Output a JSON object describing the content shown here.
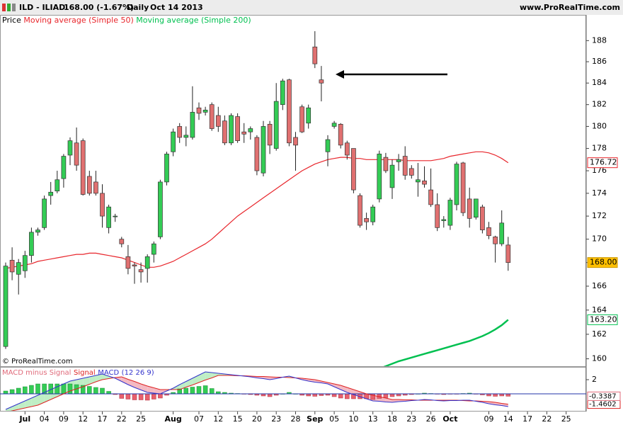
{
  "header": {
    "symbol": "ILD - ILIAD",
    "quote": "168.00 (-1.67%)",
    "period": "Daily",
    "date": "Oct 14 2013",
    "site": "www.ProRealTime.com"
  },
  "chart_data": [
    {
      "type": "candlestick",
      "legend_title": "Price",
      "watermark": "© ProRealTime.com",
      "log": true,
      "ylim": [
        159.4,
        190.4
      ],
      "yticks": [
        160,
        162,
        164,
        166,
        168,
        170,
        172,
        174,
        176,
        178,
        180,
        182,
        184,
        186,
        188
      ],
      "up_color": "#33cc55",
      "down_color": "#e07070",
      "close_label": "168.00",
      "close_label_color": "#ffc000",
      "categories": [
        null,
        null,
        null,
        "Jul",
        null,
        null,
        "04",
        null,
        null,
        "09",
        null,
        null,
        "12",
        null,
        null,
        "17",
        null,
        null,
        "22",
        null,
        null,
        "25",
        null,
        null,
        null,
        null,
        "Aug",
        null,
        null,
        null,
        "07",
        null,
        null,
        "12",
        null,
        null,
        "15",
        null,
        null,
        "20",
        null,
        null,
        "23",
        null,
        null,
        "28",
        null,
        null,
        "Sep",
        null,
        null,
        "05",
        null,
        null,
        "10",
        null,
        null,
        "13",
        null,
        null,
        "18",
        null,
        null,
        "23",
        null,
        null,
        "26",
        null,
        null,
        "Oct",
        null,
        null,
        null,
        null,
        null,
        "09",
        null,
        null,
        "14",
        null,
        null,
        "17",
        null,
        null,
        "22",
        null,
        null,
        "25",
        null,
        null
      ],
      "open": [
        161.0,
        168.2,
        167.0,
        167.3,
        168.6,
        170.6,
        171.0,
        173.8,
        174.2,
        175.3,
        177.4,
        178.5,
        178.7,
        175.5,
        175.0,
        174.0,
        171.0,
        172.0,
        170.0,
        168.5,
        167.8,
        167.4,
        167.5,
        168.7,
        170.2,
        175.0,
        177.7,
        180.0,
        179.0,
        179.0,
        181.7,
        181.3,
        182.0,
        181.0,
        180.5,
        178.5,
        180.9,
        179.5,
        179.5,
        179.0,
        175.8,
        180.2,
        178.0,
        182.0,
        184.3,
        179.0,
        181.8,
        180.3,
        187.4,
        184.3,
        177.7,
        180.0,
        180.2,
        178.5,
        178.0,
        173.8,
        171.8,
        171.5,
        173.5,
        177.2,
        174.5,
        176.8,
        177.3,
        176.2,
        175.0,
        175.1,
        174.3,
        173.0,
        171.6,
        171.2,
        173.0,
        176.7,
        173.5,
        171.9,
        172.8,
        171.0,
        170.2,
        169.6,
        169.5,
        null,
        null,
        null,
        null,
        null,
        null,
        null,
        null,
        null,
        null,
        null
      ],
      "high": [
        168.0,
        169.3,
        168.3,
        169.0,
        171.0,
        171.0,
        173.8,
        175.0,
        176.0,
        177.5,
        179.0,
        179.9,
        178.9,
        176.0,
        176.0,
        174.8,
        173.0,
        172.2,
        170.2,
        169.5,
        168.0,
        168.0,
        168.7,
        169.8,
        175.2,
        177.7,
        179.8,
        180.3,
        180.0,
        183.7,
        182.2,
        181.8,
        182.2,
        181.8,
        181.0,
        181.2,
        181.2,
        180.3,
        180.0,
        179.2,
        180.5,
        180.5,
        184.0,
        184.4,
        184.4,
        179.5,
        182.0,
        182.0,
        188.9,
        185.6,
        179.2,
        180.5,
        180.3,
        178.7,
        178.0,
        174.0,
        172.3,
        173.0,
        177.8,
        177.6,
        177.0,
        177.5,
        178.2,
        176.5,
        176.7,
        176.4,
        176.2,
        174.0,
        172.0,
        173.6,
        176.8,
        176.8,
        174.5,
        173.5,
        173.0,
        171.5,
        170.3,
        172.5,
        170.2,
        null,
        null,
        null,
        null,
        null,
        null,
        null,
        null,
        null,
        null,
        null
      ],
      "low": [
        160.8,
        166.5,
        165.3,
        166.7,
        168.0,
        170.3,
        170.8,
        173.0,
        174.0,
        174.5,
        176.5,
        176.0,
        173.8,
        173.8,
        173.8,
        171.0,
        170.5,
        171.5,
        169.3,
        167.0,
        166.2,
        166.3,
        166.3,
        168.0,
        170.0,
        174.7,
        177.3,
        178.5,
        178.2,
        178.8,
        180.6,
        181.0,
        179.6,
        179.5,
        178.3,
        178.3,
        178.5,
        178.5,
        178.8,
        175.6,
        175.5,
        177.5,
        177.8,
        181.5,
        178.2,
        176.0,
        179.4,
        179.8,
        185.4,
        182.3,
        176.4,
        179.8,
        178.0,
        177.0,
        174.0,
        171.0,
        170.8,
        171.2,
        173.2,
        175.8,
        173.5,
        176.0,
        175.2,
        175.3,
        173.7,
        174.5,
        172.8,
        170.7,
        171.0,
        170.8,
        172.5,
        172.0,
        171.0,
        171.7,
        170.5,
        170.0,
        168.0,
        169.4,
        167.3,
        null,
        null,
        null,
        null,
        null,
        null,
        null,
        null,
        null,
        null,
        null
      ],
      "close": [
        167.7,
        167.2,
        168.0,
        168.6,
        170.6,
        170.8,
        173.5,
        174.1,
        175.2,
        177.3,
        178.7,
        176.5,
        173.9,
        174.0,
        174.0,
        172.0,
        172.8,
        172.0,
        169.6,
        167.5,
        167.7,
        167.2,
        168.5,
        169.6,
        175.0,
        177.5,
        179.5,
        179.0,
        179.2,
        181.3,
        181.2,
        181.5,
        179.8,
        180.0,
        178.5,
        181.0,
        178.7,
        179.3,
        179.8,
        176.0,
        180.0,
        178.3,
        182.3,
        184.2,
        178.5,
        178.3,
        179.5,
        181.7,
        185.8,
        184.0,
        178.8,
        180.3,
        178.3,
        177.4,
        174.3,
        171.2,
        171.5,
        172.8,
        177.5,
        176.0,
        176.5,
        177.0,
        175.6,
        175.6,
        175.2,
        174.8,
        173.0,
        171.0,
        171.7,
        173.4,
        176.6,
        172.3,
        171.8,
        173.5,
        170.8,
        170.3,
        169.6,
        171.4,
        168.0,
        null,
        null,
        null,
        null,
        null,
        null,
        null,
        null,
        null,
        null,
        null
      ],
      "series": [
        {
          "name": "Moving average (Simple 50)",
          "color": "#e8262c",
          "last_label": "176.72",
          "values": [
            167.5,
            167.6,
            167.7,
            167.8,
            167.9,
            168.1,
            168.2,
            168.3,
            168.4,
            168.5,
            168.6,
            168.7,
            168.7,
            168.8,
            168.8,
            168.7,
            168.6,
            168.5,
            168.4,
            168.2,
            168.0,
            167.8,
            167.6,
            167.6,
            167.7,
            167.9,
            168.1,
            168.4,
            168.7,
            169.0,
            169.3,
            169.6,
            170.0,
            170.5,
            171.0,
            171.5,
            172.0,
            172.4,
            172.8,
            173.2,
            173.6,
            174.0,
            174.4,
            174.8,
            175.2,
            175.6,
            176.0,
            176.3,
            176.6,
            176.8,
            177.0,
            177.1,
            177.2,
            177.2,
            177.1,
            177.1,
            177.0,
            177.0,
            177.0,
            177.0,
            177.0,
            177.0,
            176.9,
            176.9,
            176.9,
            176.9,
            176.9,
            177.0,
            177.1,
            177.3,
            177.4,
            177.5,
            177.6,
            177.7,
            177.7,
            177.6,
            177.4,
            177.1,
            176.72,
            null,
            null,
            null,
            null,
            null,
            null,
            null,
            null,
            null,
            null,
            null
          ]
        },
        {
          "name": "Moving average (Simple 200)",
          "color": "#00c050",
          "last_label": "163.20",
          "values": [
            null,
            null,
            null,
            null,
            null,
            null,
            null,
            null,
            null,
            null,
            null,
            null,
            null,
            null,
            null,
            null,
            null,
            null,
            null,
            null,
            null,
            null,
            null,
            null,
            null,
            null,
            null,
            null,
            null,
            null,
            null,
            null,
            null,
            null,
            null,
            null,
            null,
            null,
            null,
            null,
            null,
            null,
            null,
            null,
            null,
            null,
            null,
            null,
            null,
            null,
            null,
            null,
            null,
            null,
            null,
            null,
            null,
            null,
            159.2,
            159.4,
            159.6,
            159.8,
            159.95,
            160.1,
            160.25,
            160.4,
            160.55,
            160.7,
            160.85,
            161.0,
            161.15,
            161.3,
            161.45,
            161.65,
            161.85,
            162.1,
            162.4,
            162.75,
            163.2,
            null,
            null,
            null,
            null,
            null,
            null,
            null,
            null,
            null,
            null,
            null
          ]
        }
      ]
    },
    {
      "type": "macd",
      "params": "(12 26 9)",
      "ylim": [
        -2.4,
        3.8
      ],
      "yticks": [
        2
      ],
      "pos_color": "#33cc55",
      "neg_color": "#e8606c",
      "pos_fill": "#bfeec5",
      "neg_fill": "#f4b9c2",
      "series": [
        {
          "name": "MACD minus Signal",
          "color": "#e06a7a",
          "last_label": "-0.3387",
          "values": [
            0.4,
            0.6,
            0.8,
            1.0,
            1.2,
            1.4,
            1.4,
            1.4,
            1.4,
            1.4,
            1.4,
            1.3,
            1.2,
            1.05,
            0.9,
            0.8,
            0.35,
            -0.1,
            -0.65,
            -0.75,
            -0.85,
            -0.85,
            -0.9,
            -0.75,
            -0.6,
            -0.2,
            0.2,
            0.7,
            0.8,
            0.95,
            1.05,
            1.15,
            0.75,
            0.3,
            0.2,
            0.1,
            0.05,
            -0.05,
            -0.1,
            -0.2,
            -0.3,
            -0.4,
            -0.2,
            0.0,
            0.2,
            0.0,
            -0.2,
            -0.3,
            -0.35,
            -0.25,
            -0.2,
            -0.4,
            -0.6,
            -0.7,
            -0.7,
            -0.7,
            -0.7,
            -0.8,
            -0.65,
            -0.55,
            -0.4,
            -0.3,
            -0.2,
            -0.1,
            0.0,
            0.1,
            0.05,
            -0.05,
            -0.1,
            -0.05,
            -0.05,
            0.05,
            0.1,
            -0.05,
            -0.15,
            -0.3,
            -0.35,
            -0.3,
            -0.3387,
            null,
            null,
            null,
            null,
            null,
            null,
            null,
            null,
            null,
            null,
            null
          ]
        },
        {
          "name": "Signal",
          "color": "#dd2222",
          "last_label": "-1.4602",
          "values": [
            -2.6,
            -2.4,
            -2.2,
            -2.0,
            -1.8,
            -1.6,
            -1.2,
            -0.8,
            -0.4,
            0.0,
            0.4,
            0.7,
            1.0,
            1.35,
            1.7,
            2.0,
            2.15,
            2.3,
            2.4,
            2.05,
            1.75,
            1.4,
            1.1,
            0.85,
            0.6,
            0.6,
            0.6,
            0.6,
            0.95,
            1.25,
            1.6,
            1.95,
            2.25,
            2.6,
            2.6,
            2.6,
            2.55,
            2.55,
            2.5,
            2.45,
            2.45,
            2.4,
            2.35,
            2.35,
            2.3,
            2.25,
            2.2,
            2.1,
            2.0,
            1.8,
            1.6,
            1.4,
            1.2,
            0.9,
            0.6,
            0.3,
            0.0,
            -0.2,
            -0.4,
            -0.6,
            -0.8,
            -0.8,
            -0.85,
            -0.85,
            -0.9,
            -0.9,
            -0.9,
            -0.9,
            -0.9,
            -0.9,
            -0.9,
            -0.95,
            -1.0,
            -1.0,
            -1.05,
            -1.1,
            -1.2,
            -1.35,
            -1.4602,
            null,
            null,
            null,
            null,
            null,
            null,
            null,
            null,
            null,
            null,
            null
          ]
        },
        {
          "name": "MACD",
          "color": "#3333cc",
          "values": [
            -2.2,
            -1.8,
            -1.4,
            -1.0,
            -0.6,
            -0.2,
            0.2,
            0.6,
            1.0,
            1.4,
            1.8,
            2.0,
            2.2,
            2.4,
            2.6,
            2.8,
            2.5,
            2.2,
            1.75,
            1.3,
            0.9,
            0.55,
            0.2,
            0.1,
            0.0,
            0.4,
            0.8,
            1.3,
            1.75,
            2.2,
            2.65,
            3.1,
            3.0,
            2.9,
            2.8,
            2.7,
            2.6,
            2.5,
            2.4,
            2.25,
            2.15,
            2.0,
            2.15,
            2.35,
            2.5,
            2.25,
            2.0,
            1.8,
            1.65,
            1.55,
            1.4,
            1.0,
            0.6,
            0.2,
            -0.1,
            -0.4,
            -0.7,
            -1.0,
            -1.05,
            -1.15,
            -1.2,
            -1.1,
            -1.05,
            -0.95,
            -0.9,
            -0.8,
            -0.85,
            -0.95,
            -1.0,
            -0.95,
            -0.95,
            -0.9,
            -0.9,
            -1.05,
            -1.2,
            -1.4,
            -1.55,
            -1.65,
            -1.7989,
            null,
            null,
            null,
            null,
            null,
            null,
            null,
            null,
            null,
            null,
            null
          ]
        }
      ]
    }
  ]
}
